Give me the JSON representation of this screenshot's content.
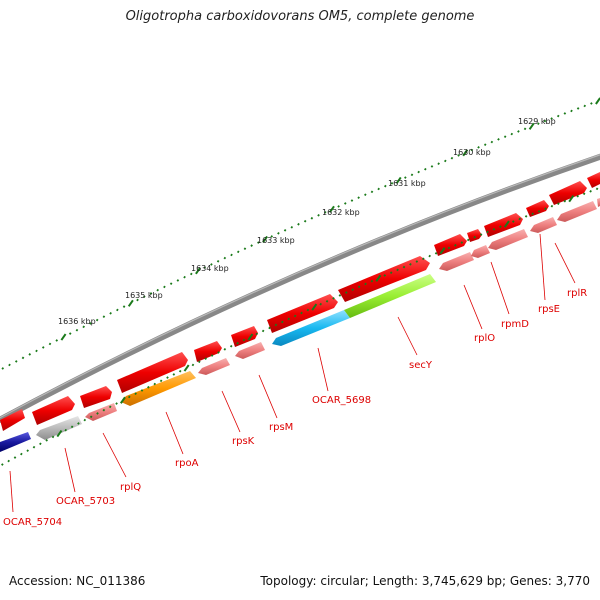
{
  "title": "Oligotropha carboxidovorans OM5, complete genome",
  "footer": {
    "accession": "Accession: NC_011386",
    "topology": "Topology: circular; Length: 3,745,629 bp; Genes: 3,770"
  },
  "colors": {
    "forward_gene": "#ee0000",
    "reverse_gene": "#ee8080",
    "backbone": "#888888",
    "tick": "#1a7a1a",
    "label": "#dd0000"
  },
  "kbp_labels": [
    "1629 kbp",
    "1630 kbp",
    "1631 kbp",
    "1632 kbp",
    "1633 kbp",
    "1634 kbp",
    "1635 kbp",
    "1636 kbp"
  ],
  "gene_labels": [
    "rplR",
    "rpsE",
    "rpmD",
    "rplO",
    "secY",
    "OCAR_5698",
    "rpsM",
    "rpsK",
    "rpoA",
    "rplQ",
    "OCAR_5703",
    "OCAR_5704"
  ]
}
